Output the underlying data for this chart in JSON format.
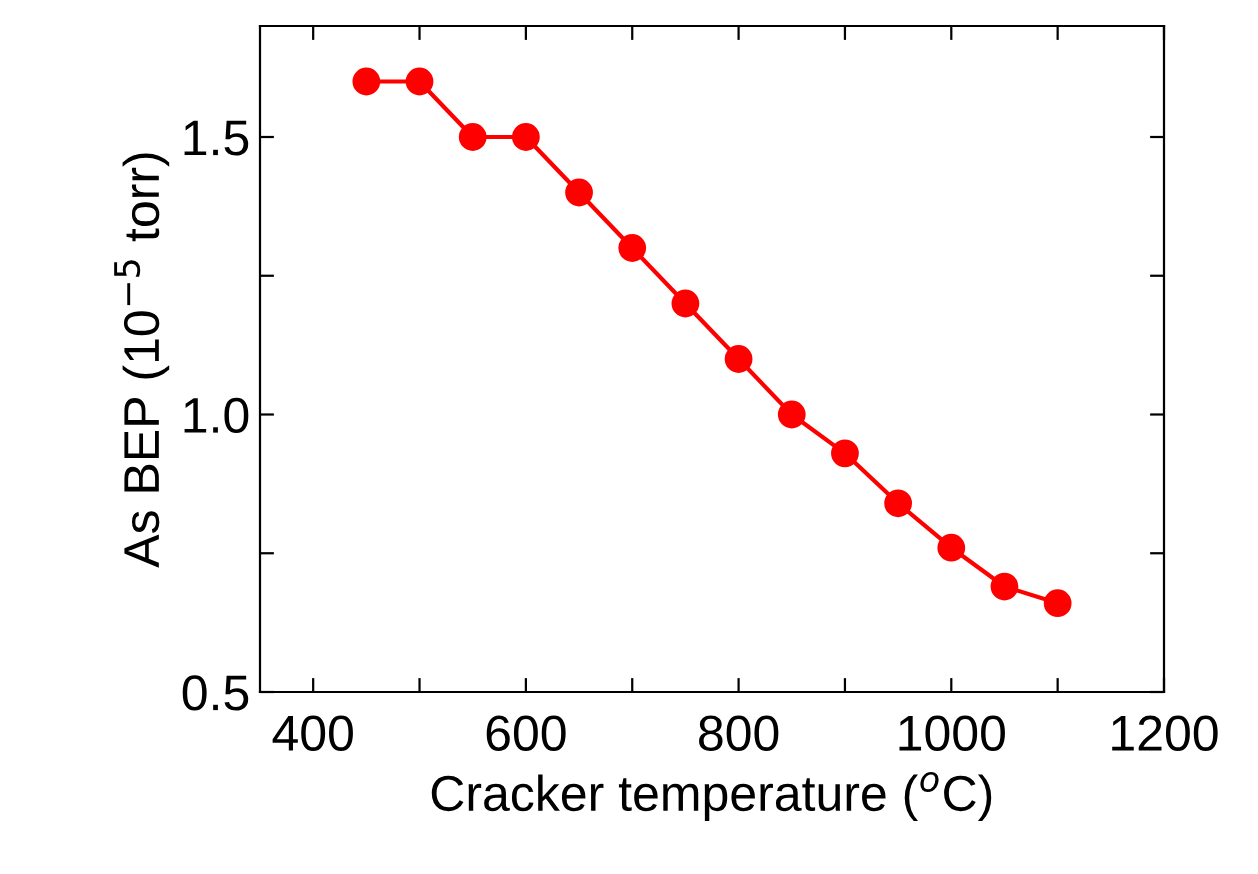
{
  "chart_data": {
    "type": "line",
    "xlabel": "Cracker temperature ($^{o}$C)",
    "ylabel": "As BEP (10$^{−5}$ torr)",
    "x": [
      450,
      500,
      550,
      600,
      650,
      700,
      750,
      800,
      850,
      900,
      950,
      1000,
      1050,
      1100
    ],
    "series": [
      {
        "color": "#ff0000",
        "values": [
          1.6,
          1.6,
          1.5,
          1.5,
          1.4,
          1.3,
          1.2,
          1.1,
          1.0,
          0.93,
          0.84,
          0.76,
          0.69,
          0.66
        ]
      }
    ],
    "xlim": [
      350,
      1200
    ],
    "ylim": [
      0.5,
      1.7
    ],
    "xticks": [
      400,
      {
        "value": 500,
        "label": null
      },
      600,
      {
        "value": 700,
        "label": null
      },
      800,
      {
        "value": 900,
        "label": null
      },
      1000,
      {
        "value": 1100,
        "label": null
      },
      1200
    ],
    "yticks": [
      0.5,
      {
        "value": 0.75,
        "label": null
      },
      {
        "value": 1.0,
        "label": "1.0"
      },
      {
        "value": 1.25,
        "label": null
      },
      1.5
    ],
    "marker": "circle",
    "line_style": "solid",
    "grid": false,
    "legend": false
  }
}
